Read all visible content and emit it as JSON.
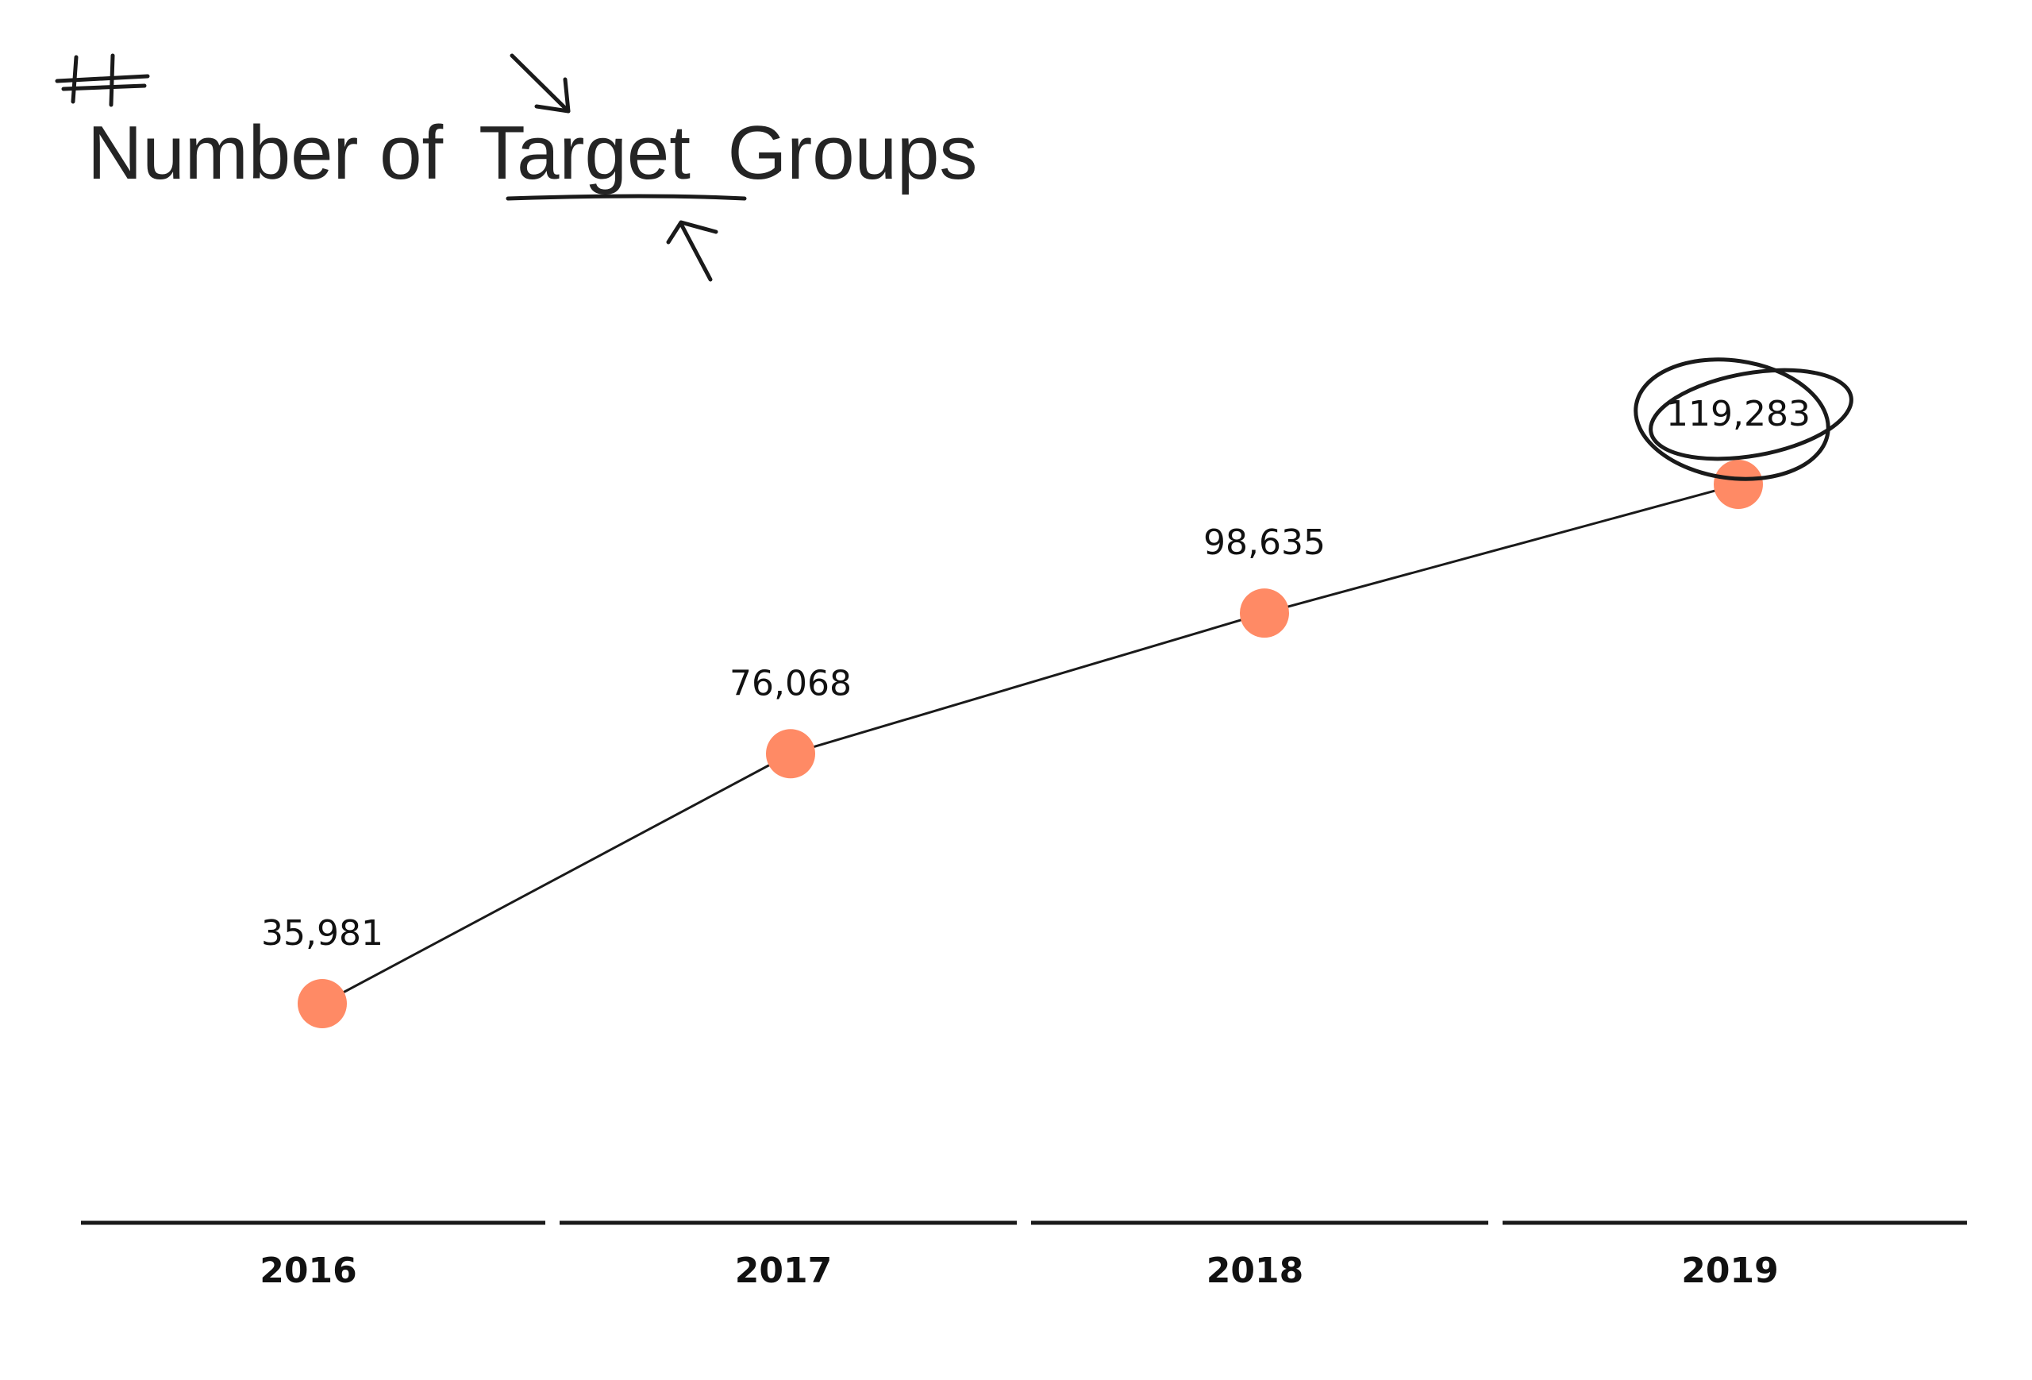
{
  "chart_data": {
    "type": "line",
    "title": "Number of Target Groups",
    "title_parts": {
      "before": "Number of",
      "highlight": "Target",
      "after": "Groups"
    },
    "categories": [
      "2016",
      "2017",
      "2018",
      "2019"
    ],
    "values": [
      35981,
      76068,
      98635,
      119283
    ],
    "value_labels": [
      "35,981",
      "76,068",
      "98,635",
      "119,283"
    ],
    "highlighted_point": "2019",
    "grid": false,
    "legend": "none",
    "colors": {
      "marker": "#ff8a65",
      "line": "#1a1a1a",
      "axis": "#1a1a1a",
      "text": "#111111"
    }
  }
}
